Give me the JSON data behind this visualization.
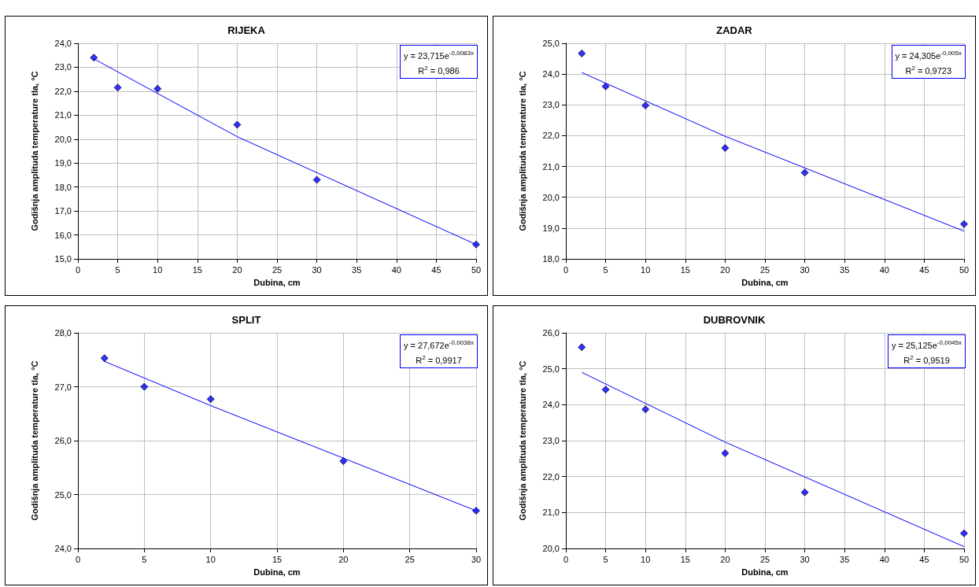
{
  "chart_data": [
    {
      "type": "scatter",
      "title": "RIJEKA",
      "xlabel": "Dubina, cm",
      "ylabel": "Godišnja amplituda temperature tla, °C",
      "marker": "diamond",
      "grid": true,
      "xlim": [
        0,
        50
      ],
      "xticks": [
        0,
        5,
        10,
        15,
        20,
        25,
        30,
        35,
        40,
        45,
        50
      ],
      "ylim": [
        15,
        24
      ],
      "yticks": [
        {
          "value": 15,
          "label": "15,0"
        },
        {
          "value": 16,
          "label": "16,0"
        },
        {
          "value": 17,
          "label": "17,0"
        },
        {
          "value": 18,
          "label": "18,0"
        },
        {
          "value": 19,
          "label": "19,0"
        },
        {
          "value": 20,
          "label": "20,0"
        },
        {
          "value": 21,
          "label": "21,0"
        },
        {
          "value": 22,
          "label": "22,0"
        },
        {
          "value": 23,
          "label": "23,0"
        },
        {
          "value": 24,
          "label": "24,0"
        }
      ],
      "series": [
        {
          "color": "#0000ff",
          "x": [
            2,
            5,
            10,
            20,
            30,
            50
          ],
          "values": [
            23.4,
            22.15,
            22.1,
            20.6,
            18.3,
            15.6
          ]
        },
        {
          "type": "line",
          "color": "#0000ff",
          "marker": "none",
          "x": [
            2,
            20,
            50
          ],
          "values": [
            23.35,
            20.1,
            15.6
          ]
        }
      ],
      "annotations": [
        "y = 23,715e$^{-0,0083x}$",
        "R$^{2}$ = 0,986"
      ]
    },
    {
      "type": "scatter",
      "title": "ZADAR",
      "xlabel": "Dubina, cm",
      "ylabel": "Godišnja amplituda temperature tla, °C",
      "marker": "diamond",
      "grid": true,
      "xlim": [
        0,
        50
      ],
      "xticks": [
        0,
        5,
        10,
        15,
        20,
        25,
        30,
        35,
        40,
        45,
        50
      ],
      "ylim": [
        18,
        25
      ],
      "yticks": [
        {
          "value": 18,
          "label": "18,0"
        },
        {
          "value": 19,
          "label": "19,0"
        },
        {
          "value": 20,
          "label": "20,0"
        },
        {
          "value": 21,
          "label": "21,0"
        },
        {
          "value": 22,
          "label": "22,0"
        },
        {
          "value": 23,
          "label": "23,0"
        },
        {
          "value": 24,
          "label": "24,0"
        },
        {
          "value": 25,
          "label": "25,0"
        }
      ],
      "series": [
        {
          "color": "#0000ff",
          "x": [
            2,
            5,
            10,
            20,
            30,
            50
          ],
          "values": [
            24.67,
            23.6,
            22.98,
            21.6,
            20.8,
            19.13
          ]
        },
        {
          "type": "line",
          "color": "#0000ff",
          "marker": "none",
          "x": [
            2,
            20,
            50
          ],
          "values": [
            24.05,
            21.98,
            18.9
          ]
        }
      ],
      "annotations": [
        "y = 24,305e$^{-0,005x}$",
        "R$^{2}$ = 0,9723"
      ]
    },
    {
      "type": "scatter",
      "title": "SPLIT",
      "xlabel": "Dubina, cm",
      "ylabel": "Godišnja amplituda temperature tla, °C",
      "marker": "diamond",
      "grid": true,
      "xlim": [
        0,
        30
      ],
      "xticks": [
        0,
        5,
        10,
        15,
        20,
        25,
        30
      ],
      "ylim": [
        24,
        28
      ],
      "yticks": [
        {
          "value": 24,
          "label": "24,0"
        },
        {
          "value": 25,
          "label": "25,0"
        },
        {
          "value": 26,
          "label": "26,0"
        },
        {
          "value": 27,
          "label": "27,0"
        },
        {
          "value": 28,
          "label": "28,0"
        }
      ],
      "series": [
        {
          "color": "#0000ff",
          "x": [
            2,
            5,
            10,
            20,
            30
          ],
          "values": [
            27.53,
            27.0,
            26.77,
            25.62,
            24.7
          ]
        },
        {
          "type": "line",
          "color": "#0000ff",
          "marker": "none",
          "x": [
            2,
            10,
            30
          ],
          "values": [
            27.47,
            26.65,
            24.7
          ]
        }
      ],
      "annotations": [
        "y = 27,672e$^{-0,0038x}$",
        "R$^{2}$ = 0,9917"
      ]
    },
    {
      "type": "scatter",
      "title": "DUBROVNIK",
      "xlabel": "Dubina, cm",
      "ylabel": "Godišnja amplituda temperature tla, °C",
      "marker": "diamond",
      "grid": true,
      "xlim": [
        0,
        50
      ],
      "xticks": [
        0,
        5,
        10,
        15,
        20,
        25,
        30,
        35,
        40,
        45,
        50
      ],
      "ylim": [
        20,
        26
      ],
      "yticks": [
        {
          "value": 20,
          "label": "20,0"
        },
        {
          "value": 21,
          "label": "21,0"
        },
        {
          "value": 22,
          "label": "22,0"
        },
        {
          "value": 23,
          "label": "23,0"
        },
        {
          "value": 24,
          "label": "24,0"
        },
        {
          "value": 25,
          "label": "25,0"
        },
        {
          "value": 26,
          "label": "26,0"
        }
      ],
      "series": [
        {
          "color": "#0000ff",
          "x": [
            2,
            5,
            10,
            20,
            30,
            50
          ],
          "values": [
            25.6,
            24.42,
            23.87,
            22.65,
            21.56,
            20.42
          ]
        },
        {
          "type": "line",
          "color": "#0000ff",
          "marker": "none",
          "x": [
            2,
            20,
            50
          ],
          "values": [
            24.9,
            22.96,
            20.05
          ]
        }
      ],
      "annotations": [
        "y = 25,125e$^{-0,0045x}$",
        "R$^{2}$ = 0,9519"
      ]
    }
  ]
}
